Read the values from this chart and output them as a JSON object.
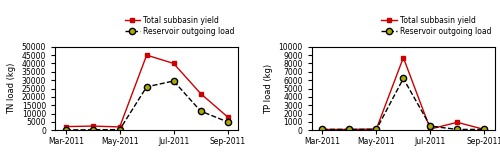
{
  "x_positions": [
    0,
    1,
    2,
    3,
    4,
    5,
    6
  ],
  "x_ticks_pos": [
    0,
    2,
    4,
    6
  ],
  "x_ticks_labels": [
    "Mar-2011",
    "May-2011",
    "Jul-2011",
    "Sep-2011"
  ],
  "tn_subbasin": [
    2200,
    2500,
    2000,
    45000,
    40000,
    22000,
    8000
  ],
  "tn_reservoir": [
    200,
    300,
    400,
    26000,
    29500,
    11500,
    5000
  ],
  "tp_subbasin": [
    100,
    100,
    150,
    8700,
    150,
    950,
    100
  ],
  "tp_reservoir": [
    100,
    100,
    100,
    6200,
    500,
    100,
    100
  ],
  "tn_ylim": [
    0,
    50000
  ],
  "tn_yticks": [
    0,
    5000,
    10000,
    15000,
    20000,
    25000,
    30000,
    35000,
    40000,
    45000,
    50000
  ],
  "tp_ylim": [
    0,
    10000
  ],
  "tp_yticks": [
    0,
    1000,
    2000,
    3000,
    4000,
    5000,
    6000,
    7000,
    8000,
    9000,
    10000
  ],
  "tn_ylabel": "TN load (kg)",
  "tp_ylabel": "TP load (kg)",
  "legend_subbasin": "Total subbasin yield",
  "legend_reservoir": "Reservoir outgoing load",
  "line_color_subbasin": "#cc0000",
  "line_color_reservoir": "#000000",
  "marker_subbasin": "s",
  "marker_reservoir": "o",
  "marker_face_subbasin": "#cc0000",
  "marker_face_reservoir": "#aaaa00",
  "figsize": [
    5.0,
    1.67
  ],
  "dpi": 100
}
